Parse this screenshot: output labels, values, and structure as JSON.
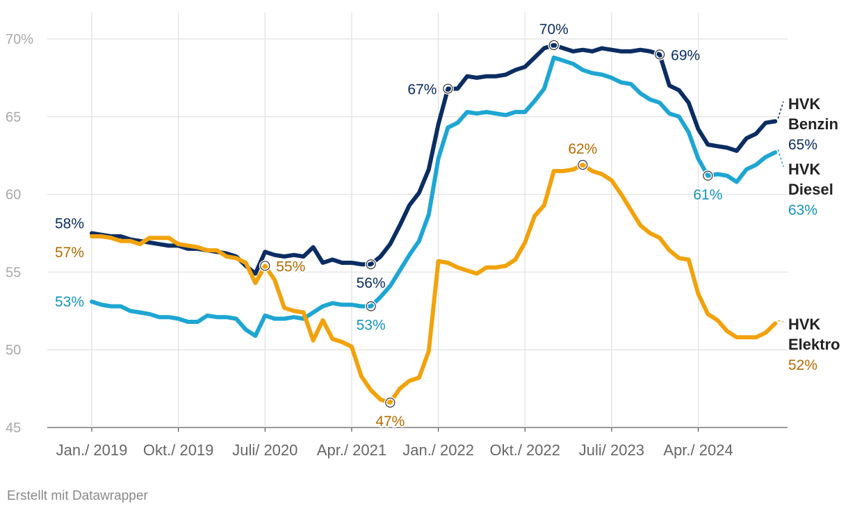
{
  "chart_data": {
    "type": "line",
    "title": "",
    "xlabel": "",
    "ylabel": "",
    "ylim": [
      45,
      70
    ],
    "grid": true,
    "y_ticks": [
      {
        "value": 70,
        "label": "70%"
      },
      {
        "value": 65,
        "label": "65"
      },
      {
        "value": 60,
        "label": "60"
      },
      {
        "value": 55,
        "label": "55"
      },
      {
        "value": 50,
        "label": "50"
      },
      {
        "value": 45,
        "label": "45"
      }
    ],
    "x_ticks": [
      {
        "index": 0,
        "label": "Jan./ 2019"
      },
      {
        "index": 9,
        "label": "Okt./ 2019"
      },
      {
        "index": 18,
        "label": "Juli/ 2020"
      },
      {
        "index": 27,
        "label": "Apr./ 2021"
      },
      {
        "index": 36,
        "label": "Jan./ 2022"
      },
      {
        "index": 45,
        "label": "Okt./ 2022"
      },
      {
        "index": 54,
        "label": "Juli/ 2023"
      },
      {
        "index": 63,
        "label": "Apr./ 2024"
      }
    ],
    "series": [
      {
        "name": "HVK Benzin",
        "name_lines": [
          "HVK",
          "Benzin"
        ],
        "end_label": "65%",
        "color": "#0b2d62",
        "label_color": "#0b2d62",
        "values": [
          57.5,
          57.4,
          57.3,
          57.3,
          57.1,
          57.0,
          56.9,
          56.8,
          56.7,
          56.7,
          56.5,
          56.5,
          56.4,
          56.3,
          56.2,
          56.0,
          55.4,
          54.9,
          56.3,
          56.1,
          56.0,
          56.1,
          56.0,
          56.6,
          55.6,
          55.8,
          55.6,
          55.6,
          55.5,
          55.5,
          56.0,
          56.8,
          58.0,
          59.3,
          60.1,
          61.6,
          64.5,
          66.8,
          66.8,
          67.6,
          67.5,
          67.6,
          67.6,
          67.7,
          68.0,
          68.2,
          68.8,
          69.4,
          69.6,
          69.4,
          69.2,
          69.3,
          69.2,
          69.4,
          69.3,
          69.2,
          69.2,
          69.3,
          69.2,
          69.0,
          67.0,
          66.7,
          65.9,
          64.2,
          63.2,
          63.1,
          63.0,
          62.8,
          63.6,
          63.9,
          64.6,
          64.7
        ],
        "annotations": [
          {
            "index": 0,
            "text": "58%",
            "pos": "above",
            "marker": false
          },
          {
            "index": 29,
            "text": "56%",
            "pos": "below",
            "marker": true
          },
          {
            "index": 37,
            "text": "67%",
            "pos": "left",
            "marker": true
          },
          {
            "index": 48,
            "text": "70%",
            "pos": "above",
            "marker": true
          },
          {
            "index": 59,
            "text": "69%",
            "pos": "right",
            "marker": true
          }
        ]
      },
      {
        "name": "HVK Diesel",
        "name_lines": [
          "HVK",
          "Diesel"
        ],
        "end_label": "63%",
        "color": "#1ea6d3",
        "label_color": "#1593bd",
        "values": [
          53.1,
          52.9,
          52.8,
          52.8,
          52.5,
          52.4,
          52.3,
          52.1,
          52.1,
          52.0,
          51.8,
          51.8,
          52.2,
          52.1,
          52.1,
          52.0,
          51.3,
          50.9,
          52.2,
          52.0,
          52.0,
          52.1,
          52.0,
          52.4,
          52.8,
          53.0,
          52.9,
          52.9,
          52.8,
          52.8,
          53.4,
          54.1,
          55.1,
          56.1,
          57.0,
          58.7,
          62.3,
          64.3,
          64.6,
          65.3,
          65.2,
          65.3,
          65.2,
          65.1,
          65.3,
          65.3,
          66.0,
          66.8,
          68.8,
          68.6,
          68.4,
          68.0,
          67.8,
          67.7,
          67.5,
          67.2,
          67.1,
          66.5,
          66.1,
          65.9,
          65.2,
          65.0,
          64.0,
          62.3,
          61.2,
          61.3,
          61.2,
          60.8,
          61.6,
          61.9,
          62.4,
          62.7
        ],
        "annotations": [
          {
            "index": 0,
            "text": "53%",
            "pos": "left",
            "marker": false
          },
          {
            "index": 29,
            "text": "53%",
            "pos": "below",
            "marker": true
          },
          {
            "index": 64,
            "text": "61%",
            "pos": "below",
            "marker": true
          }
        ]
      },
      {
        "name": "HVK Elektro",
        "name_lines": [
          "HVK",
          "Elektro"
        ],
        "end_label": "52%",
        "color": "#f2a20c",
        "label_color": "#b36b00",
        "values": [
          57.3,
          57.3,
          57.2,
          57.0,
          57.0,
          56.8,
          57.2,
          57.2,
          57.2,
          56.8,
          56.7,
          56.6,
          56.4,
          56.4,
          56.0,
          55.9,
          55.6,
          54.3,
          55.4,
          54.5,
          52.7,
          52.5,
          52.4,
          50.6,
          51.9,
          50.7,
          50.5,
          50.2,
          48.3,
          47.4,
          46.8,
          46.6,
          47.5,
          48.0,
          48.2,
          49.9,
          55.7,
          55.6,
          55.3,
          55.1,
          54.9,
          55.3,
          55.3,
          55.4,
          55.8,
          56.9,
          58.6,
          59.3,
          61.5,
          61.5,
          61.6,
          61.9,
          61.5,
          61.3,
          60.9,
          60.0,
          59.0,
          58.0,
          57.5,
          57.2,
          56.4,
          55.9,
          55.8,
          53.6,
          52.3,
          51.9,
          51.2,
          50.8,
          50.8,
          50.8,
          51.1,
          51.7
        ],
        "annotations": [
          {
            "index": 0,
            "text": "57%",
            "pos": "below",
            "marker": false
          },
          {
            "index": 18,
            "text": "55%",
            "pos": "right",
            "marker": true
          },
          {
            "index": 31,
            "text": "47%",
            "pos": "below",
            "marker": true
          },
          {
            "index": 51,
            "text": "62%",
            "pos": "above",
            "marker": true
          }
        ]
      }
    ]
  },
  "footer": {
    "credit": "Erstellt mit Datawrapper"
  }
}
